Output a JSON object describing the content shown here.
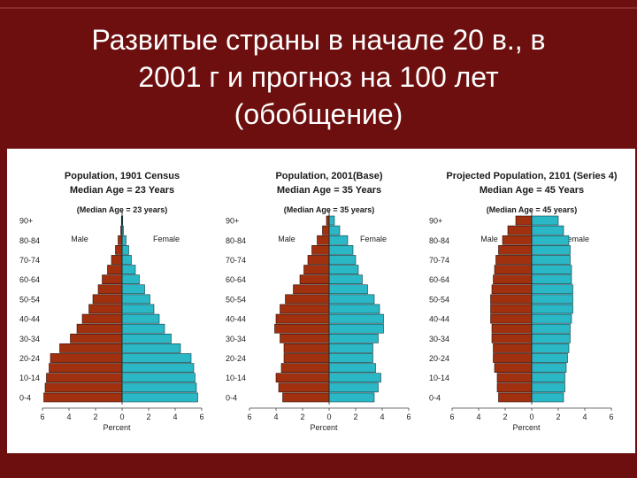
{
  "slide": {
    "title_lines": [
      "Развитые страны в начале 20 в., в",
      "2001 г и прогноз на 100 лет",
      "(обобщение)"
    ],
    "background_color": "#6e0f0f",
    "male_color": "#a0300e",
    "female_color": "#2ab7c6"
  },
  "chart_data": [
    {
      "type": "bar",
      "orientation": "population-pyramid",
      "title": "Population, 1901 Census",
      "subtitle": "Median Age = 23 Years",
      "note": "(Median Age = 23 years)",
      "xlabel": "Percent",
      "male_label": "Male",
      "female_label": "Female",
      "xlim": [
        -6,
        6
      ],
      "x_ticks": [
        "6",
        "4",
        "2",
        "0",
        "2",
        "4",
        "6"
      ],
      "y_tick_labels": [
        "90+",
        "80-84",
        "70-74",
        "60-64",
        "50-54",
        "40-44",
        "30-34",
        "20-24",
        "10-14",
        "0-4"
      ],
      "categories": [
        "0-4",
        "5-9",
        "10-14",
        "15-19",
        "20-24",
        "25-29",
        "30-34",
        "35-39",
        "40-44",
        "45-49",
        "50-54",
        "55-59",
        "60-64",
        "65-69",
        "70-74",
        "75-79",
        "80-84",
        "85-89",
        "90+"
      ],
      "series": [
        {
          "name": "Male",
          "values": [
            5.9,
            5.8,
            5.7,
            5.5,
            5.4,
            4.7,
            3.9,
            3.4,
            3.0,
            2.5,
            2.2,
            1.8,
            1.5,
            1.1,
            0.8,
            0.5,
            0.3,
            0.1,
            0.05
          ]
        },
        {
          "name": "Female",
          "values": [
            5.7,
            5.6,
            5.5,
            5.4,
            5.2,
            4.4,
            3.7,
            3.2,
            2.8,
            2.4,
            2.1,
            1.7,
            1.3,
            1.0,
            0.7,
            0.5,
            0.3,
            0.1,
            0.05
          ]
        }
      ]
    },
    {
      "type": "bar",
      "orientation": "population-pyramid",
      "title": "Population, 2001(Base)",
      "subtitle": "Median Age = 35 Years",
      "note": "(Median Age = 35 years)",
      "xlabel": "Percent",
      "male_label": "Male",
      "female_label": "Female",
      "xlim": [
        -6,
        6
      ],
      "x_ticks": [
        "6",
        "4",
        "2",
        "0",
        "2",
        "4",
        "6"
      ],
      "y_tick_labels": [
        "90+",
        "80-84",
        "70-74",
        "60-64",
        "50-54",
        "40-44",
        "30-34",
        "20-24",
        "10-14",
        "0-4"
      ],
      "categories": [
        "0-4",
        "5-9",
        "10-14",
        "15-19",
        "20-24",
        "25-29",
        "30-34",
        "35-39",
        "40-44",
        "45-49",
        "50-54",
        "55-59",
        "60-64",
        "65-69",
        "70-74",
        "75-79",
        "80-84",
        "85-89",
        "90+"
      ],
      "series": [
        {
          "name": "Male",
          "values": [
            3.5,
            3.8,
            4.0,
            3.6,
            3.4,
            3.4,
            3.7,
            4.1,
            4.0,
            3.7,
            3.3,
            2.7,
            2.2,
            1.9,
            1.6,
            1.3,
            0.9,
            0.5,
            0.2
          ]
        },
        {
          "name": "Female",
          "values": [
            3.4,
            3.7,
            3.9,
            3.5,
            3.3,
            3.3,
            3.7,
            4.1,
            4.1,
            3.8,
            3.4,
            2.9,
            2.5,
            2.2,
            2.0,
            1.8,
            1.4,
            0.8,
            0.4
          ]
        }
      ]
    },
    {
      "type": "bar",
      "orientation": "population-pyramid",
      "title": "Projected Population, 2101 (Series 4)",
      "subtitle": "Median Age = 45 Years",
      "note": "(Median Age = 45 years)",
      "xlabel": "Percent",
      "male_label": "Male",
      "female_label": "Female",
      "xlim": [
        -6,
        6
      ],
      "x_ticks": [
        "6",
        "4",
        "2",
        "0",
        "2",
        "4",
        "6"
      ],
      "y_tick_labels": [
        "90+",
        "80-84",
        "70-74",
        "60-64",
        "50-54",
        "40-44",
        "30-34",
        "20-24",
        "10-14",
        "0-4"
      ],
      "categories": [
        "0-4",
        "5-9",
        "10-14",
        "15-19",
        "20-24",
        "25-29",
        "30-34",
        "35-39",
        "40-44",
        "45-49",
        "50-54",
        "55-59",
        "60-64",
        "65-69",
        "70-74",
        "75-79",
        "80-84",
        "85-89",
        "90+"
      ],
      "series": [
        {
          "name": "Male",
          "values": [
            2.5,
            2.6,
            2.6,
            2.8,
            2.9,
            2.9,
            3.0,
            3.0,
            3.1,
            3.1,
            3.1,
            3.0,
            2.9,
            2.8,
            2.7,
            2.5,
            2.2,
            1.8,
            1.2
          ]
        },
        {
          "name": "Female",
          "values": [
            2.4,
            2.5,
            2.5,
            2.6,
            2.7,
            2.8,
            2.9,
            2.9,
            3.0,
            3.1,
            3.1,
            3.1,
            3.0,
            3.0,
            2.9,
            2.9,
            2.8,
            2.4,
            2.0
          ]
        }
      ]
    }
  ]
}
